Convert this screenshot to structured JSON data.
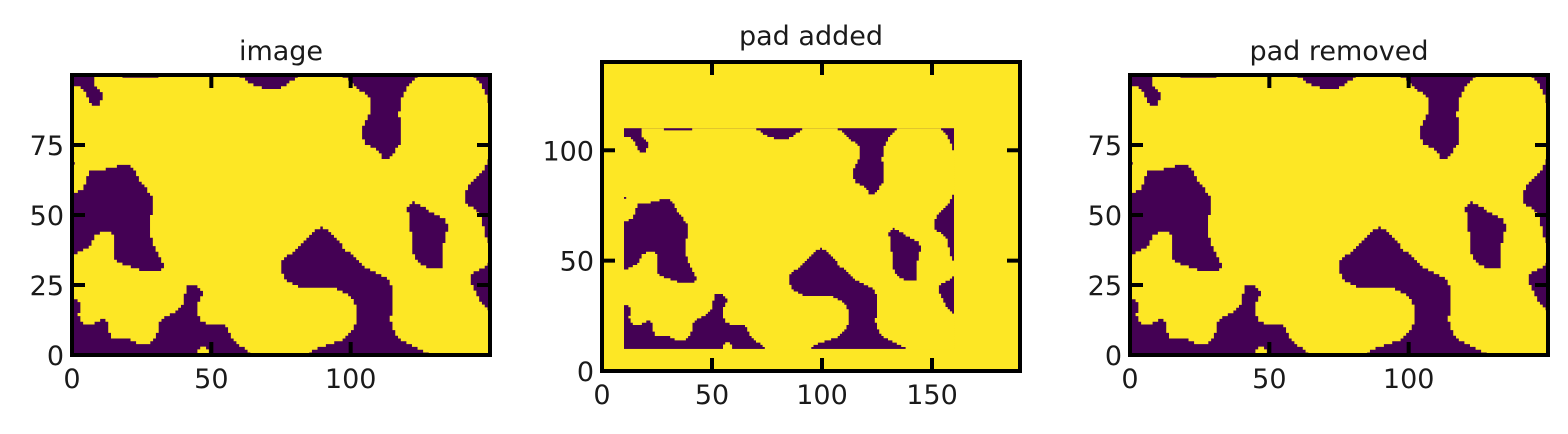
{
  "chart_data": [
    {
      "type": "heatmap",
      "title": "image",
      "xlabel": "",
      "ylabel": "",
      "xlim": [
        0,
        150
      ],
      "ylim": [
        0,
        100
      ],
      "xticks": [
        0,
        50,
        100
      ],
      "yticks": [
        0,
        25,
        50,
        75
      ],
      "grid": false,
      "colormap": "binary viridis",
      "colors": {
        "low": "#440154",
        "high": "#fde725"
      },
      "values": [
        0,
        1
      ],
      "content": "random binary blob pattern",
      "content_extent": {
        "x": [
          0,
          150
        ],
        "y": [
          0,
          100
        ]
      }
    },
    {
      "type": "heatmap",
      "title": "pad added",
      "xlabel": "",
      "ylabel": "",
      "xlim": [
        0,
        190
      ],
      "ylim": [
        0,
        140
      ],
      "xticks": [
        0,
        50,
        100,
        150
      ],
      "yticks": [
        0,
        50,
        100
      ],
      "grid": false,
      "colormap": "binary viridis",
      "colors": {
        "low": "#440154",
        "high": "#fde725"
      },
      "values": [
        0,
        1
      ],
      "pad_value": 1,
      "content": "same binary blob pattern surrounded by padding",
      "content_extent": {
        "x": [
          10,
          160
        ],
        "y": [
          10,
          110
        ]
      }
    },
    {
      "type": "heatmap",
      "title": "pad removed",
      "xlabel": "",
      "ylabel": "",
      "xlim": [
        0,
        150
      ],
      "ylim": [
        0,
        100
      ],
      "xticks": [
        0,
        50,
        100
      ],
      "yticks": [
        0,
        25,
        50,
        75
      ],
      "grid": false,
      "colormap": "binary viridis",
      "colors": {
        "low": "#440154",
        "high": "#fde725"
      },
      "values": [
        0,
        1
      ],
      "content": "random binary blob pattern",
      "content_extent": {
        "x": [
          0,
          150
        ],
        "y": [
          0,
          100
        ]
      }
    }
  ]
}
